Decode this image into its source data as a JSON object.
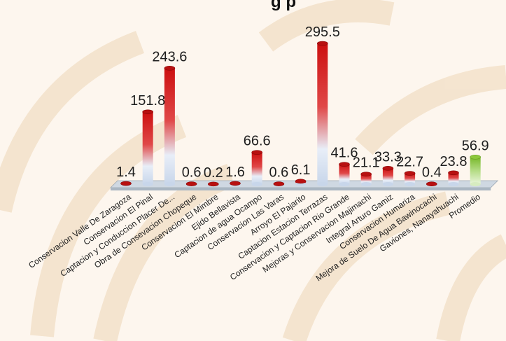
{
  "chart_data": {
    "type": "bar",
    "title": "",
    "title_fragment": "g p",
    "categories": [
      "Conservacion Valle De Zaragoza",
      "Conservacion  El Pinal",
      "Captacion y Conduccion Placer De...",
      "Obra de Consevacion Chopeque",
      "Conservacion  El Mimbre",
      "Ejido Bellavista",
      "Captacion  de agua  Ocampo",
      "Conservacion Las Varas",
      "Arroyo El Pajarito",
      "Captacion  Estacion Terrazas",
      "Conservacion y Captacion Rio Grande",
      "Mejoras y Conservacion Majimachi",
      "Integral Arturo Gamiz",
      "Conservacion Humariza",
      "Mejora de Suelo De Agua  Bawinocachi",
      "Gaviones,  Nanayahuachi",
      "Promedio"
    ],
    "values": [
      1.4,
      151.8,
      243.6,
      0.6,
      0.2,
      1.6,
      66.6,
      0.6,
      6.1,
      295.5,
      41.6,
      21.1,
      33.3,
      22.7,
      0.4,
      23.8,
      56.9
    ],
    "value_labels": [
      "1.4",
      "151.8",
      "243.6",
      "0.6",
      "0.2",
      "1.6",
      "66.6",
      "0.6",
      "6.1",
      "295.5",
      "41.6",
      "21.1",
      "33.3",
      "22.7",
      "0.4",
      "23.8",
      "56.9"
    ],
    "ylim": [
      0,
      300
    ],
    "grid": false,
    "legend": "none",
    "colors": {
      "bar_top": "#d41a1a",
      "bar_bottom": "#d8e4f4",
      "average_top": "#8cc83c",
      "average_bottom": "#e4f2d0",
      "floor": "#cfd8e2",
      "floor_edge": "#9aa6b2",
      "background": "#fdf6ee",
      "watermark": "#f4e3cc"
    }
  }
}
